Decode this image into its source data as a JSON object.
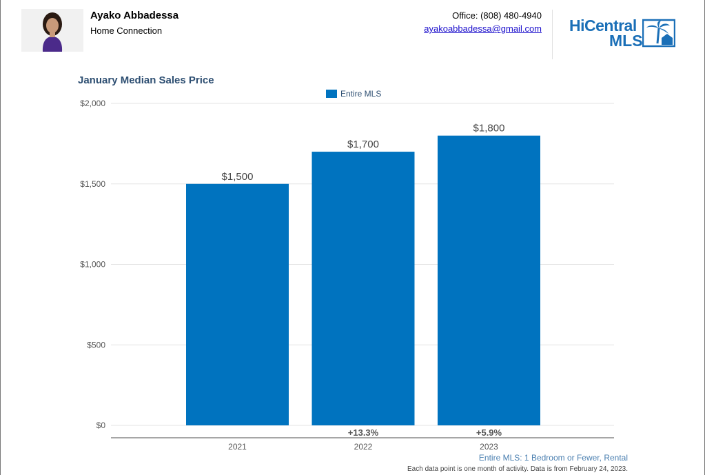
{
  "header": {
    "agent_name": "Ayako Abbadessa",
    "agent_company": "Home Connection",
    "office_phone": "Office: (808) 480-4940",
    "email": "ayakoabbadessa@gmail.com",
    "logo_line1": "HiCentral",
    "logo_line2": "MLS"
  },
  "chart_data": {
    "type": "bar",
    "title": "January Median Sales Price",
    "legend": [
      "Entire MLS"
    ],
    "legend_position": "top-center",
    "categories": [
      "2021",
      "2022",
      "2023"
    ],
    "series": [
      {
        "name": "Entire MLS",
        "values": [
          1500,
          1700,
          1800
        ]
      }
    ],
    "data_labels": [
      "$1,500",
      "$1,700",
      "$1,800"
    ],
    "change_labels": [
      "",
      "+13.3%",
      "+5.9%"
    ],
    "y_ticks": [
      0,
      500,
      1000,
      1500,
      2000
    ],
    "y_tick_labels": [
      "$0",
      "$500",
      "$1,000",
      "$1,500",
      "$2,000"
    ],
    "ylim": [
      0,
      2000
    ],
    "grid": true,
    "bar_color": "#0073bf",
    "xlabel": "",
    "ylabel": ""
  },
  "footnotes": {
    "line1": "Entire MLS: 1 Bedroom or Fewer, Rental",
    "line2": "Each data point is one month of activity. Data is from February 24, 2023."
  }
}
